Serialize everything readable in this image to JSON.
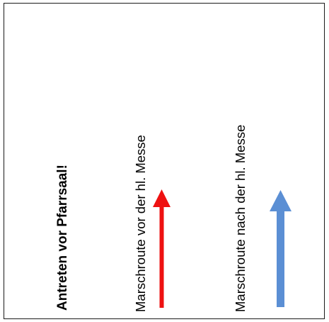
{
  "labels": {
    "title": "Antreten vor Pfarrsaal!",
    "route_before": "Marschroute vor der hl. Messe",
    "route_after": "Marschroute nach der hl. Messe"
  },
  "arrows": {
    "before": {
      "color": "#ee1111",
      "direction": "up",
      "icon": "arrow-up-icon"
    },
    "after": {
      "color": "#5b8fd4",
      "direction": "up",
      "icon": "arrow-up-icon"
    }
  }
}
